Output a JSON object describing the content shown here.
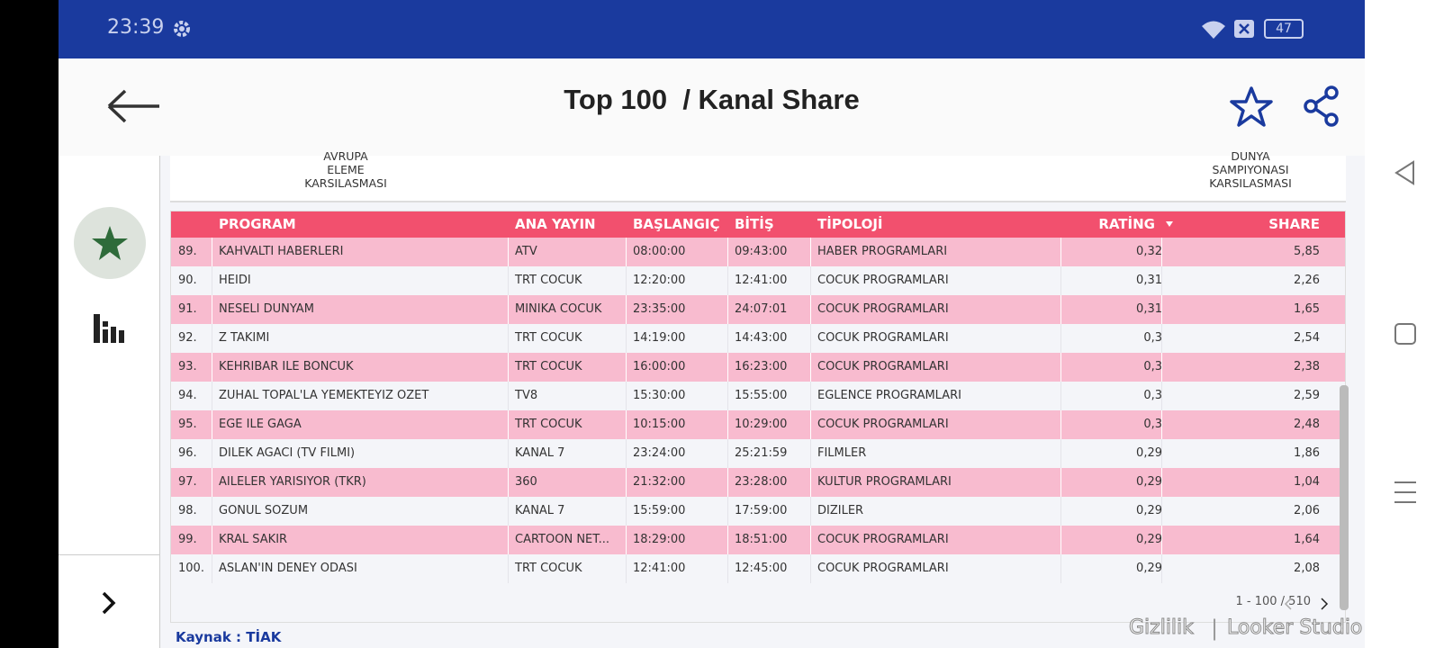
{
  "status_bar": {
    "time": "23:39",
    "battery": "47"
  },
  "header": {
    "title": "Top 100  / Kanal Share"
  },
  "banner": {
    "left": [
      "AVRUPA",
      "ELEME",
      "KARSILASMASI"
    ],
    "right": [
      "DUNYA",
      "SAMPIYONASI",
      "KARSILASMASI"
    ]
  },
  "table": {
    "columns": [
      "PROGRAM",
      "ANA YAYIN",
      "BAŞLANGIÇ",
      "BİTİŞ",
      "TİPOLOJİ",
      "RATİNG",
      "SHARE"
    ],
    "rows": [
      [
        "89.",
        "KAHVALTI HABERLERI",
        "ATV",
        "08:00:00",
        "09:43:00",
        "HABER PROGRAMLARI",
        "0,32",
        "5,85"
      ],
      [
        "90.",
        "HEIDI",
        "TRT COCUK",
        "12:20:00",
        "12:41:00",
        "COCUK PROGRAMLARI",
        "0,31",
        "2,26"
      ],
      [
        "91.",
        "NESELI DUNYAM",
        "MINIKA COCUK",
        "23:35:00",
        "24:07:01",
        "COCUK PROGRAMLARI",
        "0,31",
        "1,65"
      ],
      [
        "92.",
        "Z TAKIMI",
        "TRT COCUK",
        "14:19:00",
        "14:43:00",
        "COCUK PROGRAMLARI",
        "0,3",
        "2,54"
      ],
      [
        "93.",
        "KEHRIBAR ILE BONCUK",
        "TRT COCUK",
        "16:00:00",
        "16:23:00",
        "COCUK PROGRAMLARI",
        "0,3",
        "2,38"
      ],
      [
        "94.",
        "ZUHAL TOPAL'LA YEMEKTEYIZ OZET",
        "TV8",
        "15:30:00",
        "15:55:00",
        "EGLENCE PROGRAMLARI",
        "0,3",
        "2,59"
      ],
      [
        "95.",
        "EGE ILE GAGA",
        "TRT COCUK",
        "10:15:00",
        "10:29:00",
        "COCUK PROGRAMLARI",
        "0,3",
        "2,48"
      ],
      [
        "96.",
        "DILEK AGACI (TV FILMI)",
        "KANAL 7",
        "23:24:00",
        "25:21:59",
        "FILMLER",
        "0,29",
        "1,86"
      ],
      [
        "97.",
        "AILELER YARISIYOR (TKR)",
        "360",
        "21:32:00",
        "23:28:00",
        "KULTUR PROGRAMLARI",
        "0,29",
        "1,04"
      ],
      [
        "98.",
        "GONUL SOZUM",
        "KANAL 7",
        "15:59:00",
        "17:59:00",
        "DIZILER",
        "0,29",
        "2,06"
      ],
      [
        "99.",
        "KRAL SAKIR",
        "CARTOON NET...",
        "18:29:00",
        "18:51:00",
        "COCUK PROGRAMLARI",
        "0,29",
        "1,64"
      ],
      [
        "100.",
        "ASLAN'IN DENEY ODASI",
        "TRT COCUK",
        "12:41:00",
        "12:45:00",
        "COCUK PROGRAMLARI",
        "0,29",
        "2,08"
      ]
    ]
  },
  "pagination": "1 - 100 / 510",
  "source": "Kaynak : TİAK",
  "footer": {
    "privacy": "Gizlilik",
    "brand": "Looker Studio"
  }
}
